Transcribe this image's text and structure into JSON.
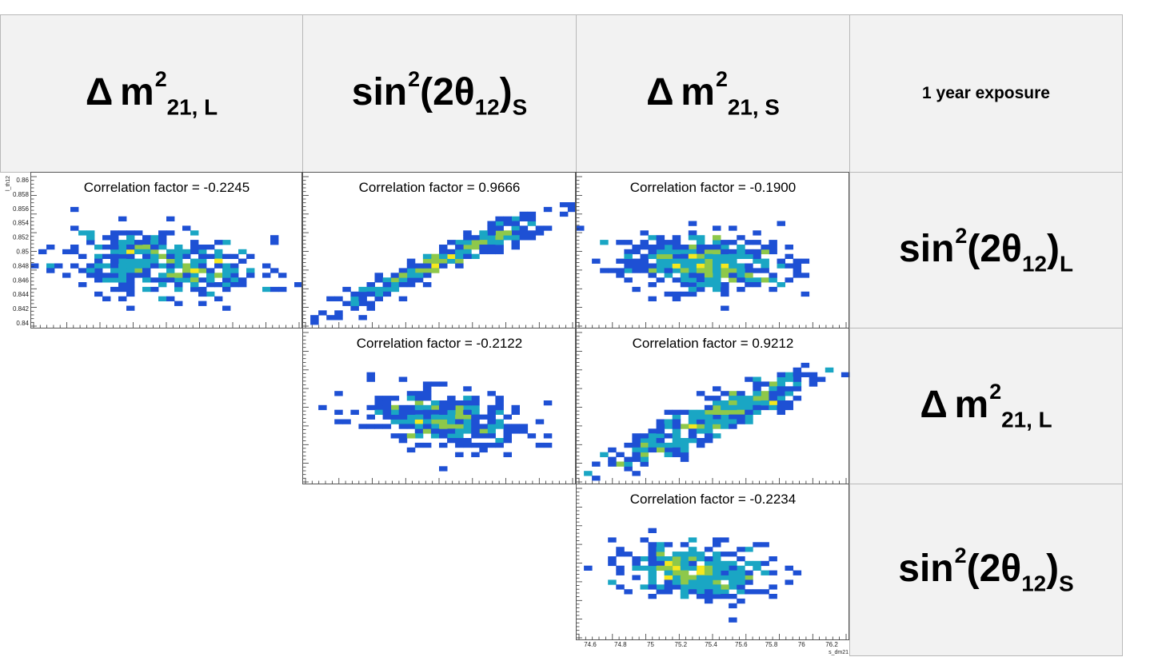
{
  "headers": {
    "col1": {
      "base": "Δ",
      "sym": "m",
      "exp": "2",
      "sub": "21, L"
    },
    "col2": {
      "fn": "sin",
      "exp": "2",
      "arg": "(2θ",
      "sub12": "12",
      "close": ")",
      "sub": "S"
    },
    "col3": {
      "base": "Δ",
      "sym": "m",
      "exp": "2",
      "sub": "21, S"
    },
    "corner": "1 year exposure",
    "row1": {
      "fn": "sin",
      "exp": "2",
      "arg": "(2θ",
      "sub12": "12",
      "close": ")",
      "sub": "L"
    },
    "row2": {
      "base": "Δ",
      "sym": "m",
      "exp": "2",
      "sub": "21, L"
    },
    "row3": {
      "fn": "sin",
      "exp": "2",
      "arg": "(2θ",
      "sub12": "12",
      "close": ")",
      "sub": "S"
    }
  },
  "chart_data": [
    {
      "type": "heatmap",
      "panel": "row1-col1",
      "annotation": "Correlation factor = -0.2245",
      "correlation": -0.2245,
      "ylabel": "l_th12",
      "yticks": [
        "0.86",
        "0.858",
        "0.856",
        "0.854",
        "0.852",
        "0.85",
        "0.848",
        "0.846",
        "0.844",
        "0.842",
        "0.84"
      ],
      "ylim": [
        0.84,
        0.861
      ]
    },
    {
      "type": "heatmap",
      "panel": "row1-col2",
      "annotation": "Correlation factor = 0.9666",
      "correlation": 0.9666
    },
    {
      "type": "heatmap",
      "panel": "row1-col3",
      "annotation": "Correlation factor = -0.1900",
      "correlation": -0.19
    },
    {
      "type": "heatmap",
      "panel": "row2-col2",
      "annotation": "Correlation factor = -0.2122",
      "correlation": -0.2122
    },
    {
      "type": "heatmap",
      "panel": "row2-col3",
      "annotation": "Correlation factor = 0.9212",
      "correlation": 0.9212
    },
    {
      "type": "heatmap",
      "panel": "row3-col3",
      "annotation": "Correlation factor = -0.2234",
      "correlation": -0.2234,
      "xlabel": "s_dm21",
      "xticks": [
        "74.6",
        "74.8",
        "75",
        "75.2",
        "75.4",
        "75.6",
        "75.8",
        "76",
        "76.2"
      ],
      "xlim": [
        74.52,
        76.32
      ]
    }
  ],
  "colors": {
    "low": "#1e50d4",
    "mid": "#1aa6c4",
    "midhigh": "#8ec84a",
    "high": "#f5e81e",
    "frame": "#555555",
    "header_bg": "#f2f2f2"
  }
}
